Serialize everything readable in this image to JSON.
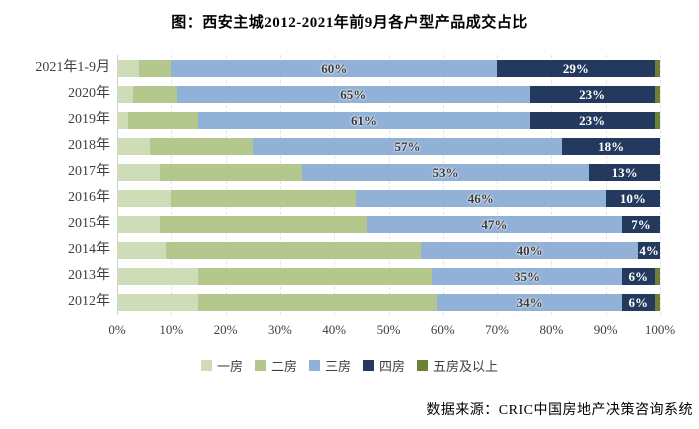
{
  "title": "图：西安主城2012-2021年前9月各户型产品成交占比",
  "source": "数据来源：CRIC中国房地产决策咨询系统",
  "chart_data": {
    "type": "bar",
    "orientation": "horizontal",
    "stacked": true,
    "title": "图：西安主城2012-2021年前9月各户型产品成交占比",
    "categories": [
      "2021年1-9月",
      "2020年",
      "2019年",
      "2018年",
      "2017年",
      "2016年",
      "2015年",
      "2014年",
      "2013年",
      "2012年"
    ],
    "series": [
      {
        "name": "一房",
        "key": "one-room",
        "color": "#cfdcb8",
        "labeled": false,
        "values": [
          4,
          3,
          2,
          6,
          8,
          10,
          8,
          9,
          15,
          15
        ]
      },
      {
        "name": "二房",
        "key": "two-room",
        "color": "#b4c88e",
        "labeled": false,
        "values": [
          6,
          8,
          13,
          19,
          26,
          34,
          38,
          47,
          43,
          44
        ]
      },
      {
        "name": "三房",
        "key": "three-room",
        "color": "#92b1d7",
        "labeled": true,
        "label_style": "dark",
        "values": [
          60,
          65,
          61,
          57,
          53,
          46,
          47,
          40,
          35,
          34
        ]
      },
      {
        "name": "四房",
        "key": "four-room",
        "color": "#24395e",
        "labeled": true,
        "label_style": "light",
        "values": [
          29,
          23,
          23,
          18,
          13,
          10,
          7,
          4,
          6,
          6
        ]
      },
      {
        "name": "五房及以上",
        "key": "five-plus-room",
        "color": "#6d8039",
        "labeled": false,
        "values": [
          1,
          1,
          1,
          0,
          0,
          0,
          0,
          0,
          1,
          1
        ]
      }
    ],
    "value_unit": "%",
    "xlim": [
      0,
      100
    ],
    "x_ticks": [
      "0%",
      "10%",
      "20%",
      "30%",
      "40%",
      "50%",
      "60%",
      "70%",
      "80%",
      "90%",
      "100%"
    ],
    "grid": "vertical-dashed",
    "legend_position": "bottom"
  }
}
